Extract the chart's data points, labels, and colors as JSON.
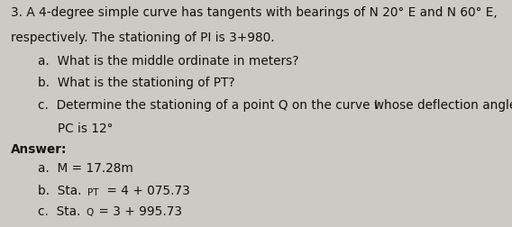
{
  "background_color": "#cdc9c3",
  "fig_width": 5.68,
  "fig_height": 2.53,
  "dpi": 100,
  "line1": "3. A 4-degree simple curve has tangents with bearings of N 20° E and N 60° E,",
  "line2": "respectively. The stationing of PI is 3+980.",
  "sub_a": "a.  What is the middle ordinate in meters?",
  "sub_b": "b.  What is the stationing of PT?",
  "sub_c1": "c.  Determine the stationing of a point Q on the curve whose deflection angle from",
  "sub_c2": "     PC is 12°",
  "cursor": "I",
  "answer_label": "Answer:",
  "ans_a": "a.  M = 17.28m",
  "ans_b_pre": "b.  Sta.",
  "ans_b_sub": "PT",
  "ans_b_suf": " = 4 + 075.73",
  "ans_c_pre": "c.  Sta.",
  "ans_c_sub": "Q",
  "ans_c_suf": " = 3 + 995.73",
  "fs": 9.8,
  "fs_ans": 9.8,
  "fs_sub": 7.5,
  "text_color": "#111111"
}
